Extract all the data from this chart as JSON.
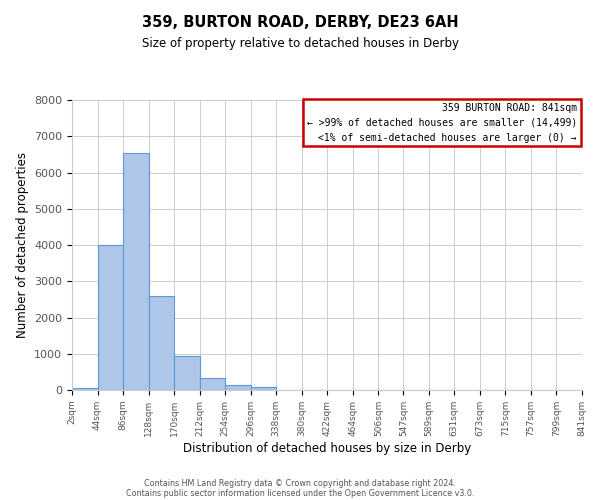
{
  "title": "359, BURTON ROAD, DERBY, DE23 6AH",
  "subtitle": "Size of property relative to detached houses in Derby",
  "xlabel": "Distribution of detached houses by size in Derby",
  "ylabel": "Number of detached properties",
  "bar_color": "#aec6e8",
  "bar_edge_color": "#5b9bd5",
  "bins": [
    2,
    44,
    86,
    128,
    170,
    212,
    254,
    296,
    338,
    380,
    422,
    464,
    506,
    547,
    589,
    631,
    673,
    715,
    757,
    799,
    841
  ],
  "values": [
    50,
    4000,
    6550,
    2600,
    950,
    320,
    130,
    80,
    0,
    0,
    0,
    0,
    0,
    0,
    0,
    0,
    0,
    0,
    0,
    0
  ],
  "ylim": [
    0,
    8000
  ],
  "yticks": [
    0,
    1000,
    2000,
    3000,
    4000,
    5000,
    6000,
    7000,
    8000
  ],
  "tick_labels": [
    "2sqm",
    "44sqm",
    "86sqm",
    "128sqm",
    "170sqm",
    "212sqm",
    "254sqm",
    "296sqm",
    "338sqm",
    "380sqm",
    "422sqm",
    "464sqm",
    "506sqm",
    "547sqm",
    "589sqm",
    "631sqm",
    "673sqm",
    "715sqm",
    "757sqm",
    "799sqm",
    "841sqm"
  ],
  "annotation_box_text_line1": "359 BURTON ROAD: 841sqm",
  "annotation_box_text_line2": "← >99% of detached houses are smaller (14,499)",
  "annotation_box_text_line3": "<1% of semi-detached houses are larger (0) →",
  "annotation_box_color": "#cc0000",
  "annotation_box_facecolor": "white",
  "grid_color": "#cccccc",
  "background_color": "white",
  "footnote_line1": "Contains HM Land Registry data © Crown copyright and database right 2024.",
  "footnote_line2": "Contains public sector information licensed under the Open Government Licence v3.0."
}
